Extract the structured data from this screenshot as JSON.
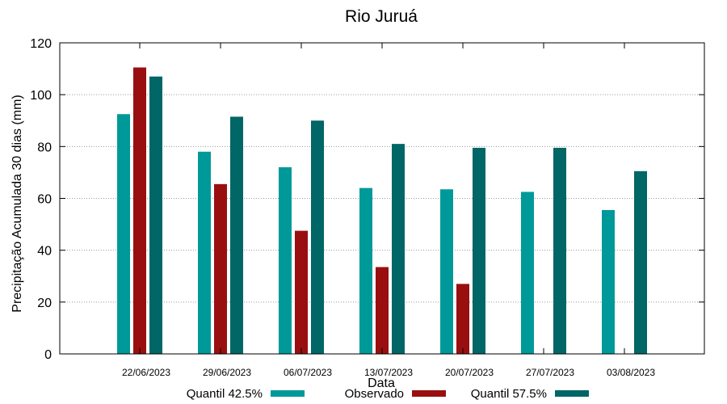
{
  "chart_data": {
    "type": "bar",
    "title": "Rio Juruá",
    "xlabel": "Data",
    "ylabel": "Precipitação Acumulada 30 dias (mm)",
    "ylim": [
      0,
      120
    ],
    "yticks": [
      0,
      20,
      40,
      60,
      80,
      100,
      120
    ],
    "grid": true,
    "legend_position": "bottom",
    "categories": [
      "22/06/2023",
      "29/06/2023",
      "06/07/2023",
      "13/07/2023",
      "20/07/2023",
      "27/07/2023",
      "03/08/2023"
    ],
    "series": [
      {
        "name": "Quantil 42.5%",
        "color": "#009999",
        "values": [
          92.5,
          78,
          72,
          64,
          63.5,
          62.5,
          55.5
        ]
      },
      {
        "name": "Observado",
        "color": "#990f0f",
        "values": [
          110.5,
          65.5,
          47.5,
          33.5,
          27,
          null,
          null
        ]
      },
      {
        "name": "Quantil 57.5%",
        "color": "#006666",
        "values": [
          107,
          91.5,
          90,
          81,
          79.5,
          79.5,
          70.5
        ]
      }
    ]
  }
}
